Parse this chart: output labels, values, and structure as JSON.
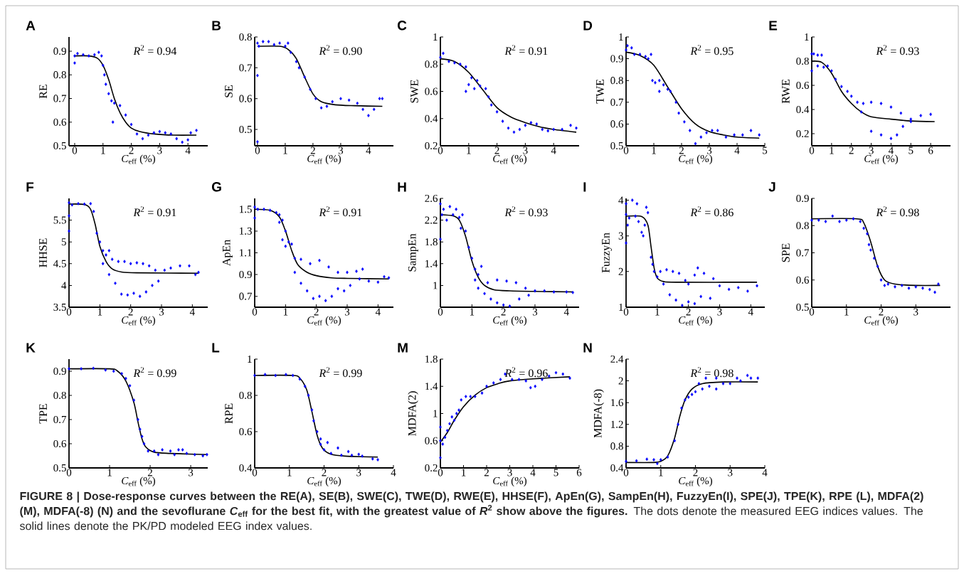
{
  "chart_data": [
    {
      "type": "line",
      "title": "A",
      "xlabel": "*C*$_{eff}$ (%)",
      "ylabel": "RE",
      "annotations": [
        "*R*$^{2}$ = 0.94",
        "FIGURE 8 | Dose-response curves between the RE(A), SE(B), SWE(C), TWE(D), RWE(E), HHSE(F), ApEn(G), SampEn(H), FuzzyEn(I), SPE(J), TPE(K), RPE (L), MDFA(2) (M), MDFA(-8) (N) and the sevoflurane *C*$_{eff}$ for the best fit, with the greatest value of *R*$^{2}$ show above the figures.",
        "The dots denote the measured EEG indices values. The solid lines denote the PK/PD modeled EEG index values."
      ],
      "xlim": [
        -0.2,
        4.7
      ],
      "ylim": [
        0.5,
        0.96
      ],
      "xticks": [
        0,
        1,
        2,
        3,
        4
      ],
      "yticks": [
        0.5,
        0.6,
        0.7,
        0.8,
        0.9
      ],
      "series": [
        {
          "type": "scatter",
          "marker": "diamond",
          "color": "#0000ff",
          "x": [
            0,
            0,
            0.1,
            0.3,
            0.5,
            0.7,
            0.85,
            0.95,
            1.0,
            1.05,
            1.1,
            1.2,
            1.3,
            1.35,
            1.4,
            1.6,
            1.8,
            2.0,
            2.2,
            2.4,
            2.6,
            2.8,
            3.0,
            3.2,
            3.4,
            3.6,
            3.8,
            4.0,
            4.1,
            4.3
          ],
          "values": [
            0.85,
            0.88,
            0.89,
            0.885,
            0.88,
            0.885,
            0.895,
            0.88,
            0.84,
            0.8,
            0.76,
            0.72,
            0.69,
            0.6,
            0.68,
            0.67,
            0.63,
            0.59,
            0.55,
            0.53,
            0.545,
            0.555,
            0.56,
            0.555,
            0.55,
            0.53,
            0.515,
            0.525,
            0.555,
            0.565
          ]
        },
        {
          "marker": "none",
          "color": "#000000",
          "x": [
            0,
            0.5,
            0.8,
            1.0,
            1.2,
            1.4,
            1.6,
            1.8,
            2.0,
            2.3,
            2.8,
            3.5,
            4.3
          ],
          "values": [
            0.88,
            0.88,
            0.87,
            0.84,
            0.78,
            0.7,
            0.64,
            0.6,
            0.575,
            0.56,
            0.55,
            0.545,
            0.545
          ]
        }
      ]
    },
    {
      "type": "line",
      "title": "B",
      "xlabel": "*C*$_{eff}$ (%)",
      "ylabel": "SE",
      "annotations": [
        "*R*$^{2}$ = 0.90"
      ],
      "xlim": [
        -0.1,
        4.9
      ],
      "ylim": [
        0.447,
        0.8
      ],
      "xticks": [
        0,
        1,
        2,
        3,
        4
      ],
      "yticks": [
        0.5,
        0.6,
        0.7,
        0.8
      ],
      "series": [
        {
          "type": "scatter",
          "marker": "diamond",
          "color": "#0000ff",
          "x": [
            0,
            0,
            0,
            0.05,
            0.2,
            0.4,
            0.6,
            0.8,
            1.0,
            1.1,
            1.2,
            1.4,
            1.5,
            1.7,
            1.9,
            2.1,
            2.3,
            2.5,
            2.7,
            3.0,
            3.3,
            3.6,
            3.8,
            4.0,
            4.2,
            4.4,
            4.5
          ],
          "values": [
            0.46,
            0.675,
            0.78,
            0.77,
            0.785,
            0.785,
            0.775,
            0.78,
            0.77,
            0.78,
            0.75,
            0.72,
            0.7,
            0.67,
            0.63,
            0.6,
            0.57,
            0.575,
            0.59,
            0.6,
            0.595,
            0.585,
            0.565,
            0.545,
            0.565,
            0.6,
            0.6
          ]
        },
        {
          "marker": "none",
          "color": "#000000",
          "x": [
            0,
            0.8,
            1.1,
            1.4,
            1.7,
            2.0,
            2.3,
            2.8,
            3.5,
            4.5
          ],
          "values": [
            0.77,
            0.77,
            0.76,
            0.73,
            0.67,
            0.615,
            0.59,
            0.58,
            0.577,
            0.575
          ]
        }
      ]
    },
    {
      "type": "line",
      "title": "C",
      "xlabel": "*C*$_{eff}$ (%)",
      "ylabel": "SWE",
      "annotations": [
        "*R*$^{2}$ = 0.91"
      ],
      "xlim": [
        0,
        4.9
      ],
      "ylim": [
        0.2,
        1
      ],
      "xticks": [
        0,
        1,
        2,
        3,
        4
      ],
      "yticks": [
        0.2,
        0.4,
        0.6,
        0.8,
        1
      ],
      "series": [
        {
          "type": "scatter",
          "marker": "diamond",
          "color": "#0000ff",
          "x": [
            0,
            0.1,
            0.3,
            0.5,
            0.7,
            0.9,
            0.9,
            1.0,
            1.1,
            1.2,
            1.3,
            1.4,
            1.6,
            1.7,
            1.8,
            2.0,
            2.2,
            2.4,
            2.6,
            2.8,
            3.0,
            3.2,
            3.4,
            3.6,
            3.8,
            4.0,
            4.3,
            4.6,
            4.8
          ],
          "values": [
            0.85,
            0.88,
            0.82,
            0.81,
            0.8,
            0.78,
            0.6,
            0.65,
            0.7,
            0.62,
            0.68,
            0.64,
            0.62,
            0.56,
            0.5,
            0.45,
            0.38,
            0.33,
            0.3,
            0.32,
            0.35,
            0.37,
            0.36,
            0.32,
            0.31,
            0.32,
            0.32,
            0.35,
            0.33
          ]
        },
        {
          "marker": "none",
          "color": "#000000",
          "x": [
            0,
            0.5,
            1.0,
            1.5,
            2.0,
            2.5,
            3.0,
            3.5,
            4.0,
            4.8
          ],
          "values": [
            0.84,
            0.82,
            0.74,
            0.61,
            0.48,
            0.41,
            0.37,
            0.34,
            0.32,
            0.3
          ]
        }
      ]
    },
    {
      "type": "line",
      "title": "D",
      "xlabel": "*C*$_{eff}$ (%)",
      "ylabel": "TWE",
      "annotations": [
        "*R*$^{2}$ = 0.95"
      ],
      "xlim": [
        0,
        5
      ],
      "ylim": [
        0.5,
        1
      ],
      "xticks": [
        0,
        1,
        2,
        3,
        4,
        5
      ],
      "yticks": [
        0.5,
        0.6,
        0.7,
        0.8,
        0.9,
        1
      ],
      "series": [
        {
          "type": "scatter",
          "marker": "diamond",
          "color": "#0000ff",
          "x": [
            0,
            0.05,
            0.2,
            0.3,
            0.5,
            0.7,
            0.8,
            0.9,
            0.95,
            1.05,
            1.2,
            1.2,
            1.35,
            1.5,
            1.6,
            1.8,
            1.9,
            2.1,
            2.3,
            2.5,
            2.7,
            2.9,
            3.1,
            3.3,
            3.6,
            3.9,
            4.2,
            4.5,
            4.8
          ],
          "values": [
            0.94,
            0.96,
            0.95,
            0.92,
            0.92,
            0.91,
            0.9,
            0.92,
            0.8,
            0.79,
            0.8,
            0.75,
            0.78,
            0.76,
            0.75,
            0.7,
            0.65,
            0.61,
            0.57,
            0.51,
            0.54,
            0.56,
            0.57,
            0.57,
            0.54,
            0.55,
            0.55,
            0.57,
            0.55
          ]
        },
        {
          "marker": "none",
          "color": "#000000",
          "x": [
            0,
            0.5,
            1.0,
            1.5,
            2.0,
            2.5,
            3.0,
            3.5,
            4.0,
            4.8
          ],
          "values": [
            0.93,
            0.915,
            0.87,
            0.77,
            0.67,
            0.6,
            0.565,
            0.55,
            0.54,
            0.535
          ]
        }
      ]
    },
    {
      "type": "line",
      "title": "E",
      "xlabel": "*C*$_{eff}$ (%)",
      "ylabel": "RWE",
      "annotations": [
        "*R*$^{2}$ = 0.93"
      ],
      "xlim": [
        0,
        7
      ],
      "ylim": [
        0.1,
        1
      ],
      "xticks": [
        0,
        1,
        2,
        3,
        4,
        5,
        6
      ],
      "yticks": [
        0.2,
        0.4,
        0.6,
        0.8,
        1
      ],
      "series": [
        {
          "type": "scatter",
          "marker": "diamond",
          "color": "#0000ff",
          "x": [
            0,
            0,
            0.1,
            0.3,
            0.5,
            0.3,
            0.6,
            0.8,
            1.0,
            1.2,
            1.5,
            1.8,
            2.0,
            2.3,
            2.6,
            3.0,
            3.5,
            4.0,
            4.5,
            5.0,
            2.5,
            3.0,
            3.5,
            4.0,
            4.3,
            4.6,
            5.0,
            5.5,
            6.0
          ],
          "values": [
            0.72,
            0.86,
            0.86,
            0.85,
            0.85,
            0.76,
            0.75,
            0.76,
            0.72,
            0.65,
            0.59,
            0.55,
            0.51,
            0.46,
            0.45,
            0.46,
            0.45,
            0.42,
            0.37,
            0.32,
            0.38,
            0.22,
            0.19,
            0.16,
            0.19,
            0.26,
            0.3,
            0.35,
            0.36
          ]
        },
        {
          "marker": "none",
          "color": "#000000",
          "x": [
            0,
            0.5,
            1.0,
            1.5,
            2.0,
            2.5,
            3.0,
            4.0,
            5.0,
            6.2
          ],
          "values": [
            0.8,
            0.79,
            0.7,
            0.55,
            0.45,
            0.38,
            0.34,
            0.32,
            0.305,
            0.3
          ]
        }
      ]
    },
    {
      "type": "line",
      "title": "F",
      "xlabel": "*C*$_{eff}$ (%)",
      "ylabel": "HHSE",
      "annotations": [
        "*R*$^{2}$ = 0.91"
      ],
      "xlim": [
        0,
        4.5
      ],
      "ylim": [
        3.5,
        6
      ],
      "xticks": [
        0,
        1,
        2,
        3,
        4
      ],
      "yticks": [
        3.5,
        4,
        4.5,
        5,
        5.5
      ],
      "series": [
        {
          "type": "scatter",
          "marker": "diamond",
          "color": "#0000ff",
          "x": [
            0,
            0,
            0,
            0.1,
            0.3,
            0.5,
            0.7,
            0.8,
            0.9,
            1.0,
            1.1,
            1.2,
            1.3,
            1.4,
            1.6,
            1.8,
            2.0,
            2.2,
            2.4,
            2.6,
            2.8,
            1.1,
            1.3,
            1.5,
            1.7,
            1.9,
            2.1,
            2.3,
            2.5,
            2.7,
            2.9,
            3.1,
            3.3,
            3.6,
            3.9,
            4.1,
            4.2
          ],
          "values": [
            5.25,
            5.6,
            5.9,
            5.85,
            5.88,
            5.87,
            5.88,
            5.7,
            5.2,
            5.0,
            4.8,
            4.7,
            4.8,
            4.6,
            4.55,
            4.55,
            4.5,
            4.52,
            4.5,
            4.45,
            4.35,
            4.5,
            4.25,
            4.05,
            3.8,
            3.78,
            3.82,
            3.75,
            3.85,
            4.0,
            4.1,
            4.35,
            4.4,
            4.45,
            4.45,
            4.25,
            4.3
          ]
        },
        {
          "marker": "none",
          "color": "#000000",
          "x": [
            0,
            0.5,
            0.7,
            0.85,
            1.0,
            1.2,
            1.4,
            1.7,
            2.2,
            4.2
          ],
          "values": [
            5.87,
            5.86,
            5.75,
            5.4,
            4.9,
            4.55,
            4.38,
            4.31,
            4.29,
            4.28
          ]
        }
      ]
    },
    {
      "type": "line",
      "title": "G",
      "xlabel": "*C*$_{eff}$ (%)",
      "ylabel": "ApEn",
      "annotations": [
        "*R*$^{2}$ = 0.91"
      ],
      "xlim": [
        0,
        4.5
      ],
      "ylim": [
        0.6,
        1.6
      ],
      "xticks": [
        0,
        1,
        2,
        3,
        4
      ],
      "yticks": [
        0.7,
        0.9,
        1.1,
        1.3,
        1.5
      ],
      "series": [
        {
          "type": "scatter",
          "marker": "diamond",
          "color": "#0000ff",
          "x": [
            0,
            0,
            0.1,
            0.3,
            0.5,
            0.7,
            0.8,
            0.9,
            1.0,
            1.1,
            1.2,
            1.3,
            1.5,
            1.8,
            2.1,
            2.4,
            2.7,
            3.0,
            3.3,
            3.5,
            0.8,
            0.9,
            1.0,
            1.3,
            1.5,
            1.7,
            1.9,
            2.1,
            2.3,
            2.5,
            2.7,
            2.9,
            3.1,
            3.4,
            3.7,
            4.0,
            4.2,
            4.35
          ],
          "values": [
            1.42,
            1.52,
            1.5,
            1.5,
            1.49,
            1.47,
            1.45,
            1.4,
            1.3,
            1.2,
            1.18,
            1.05,
            1.04,
            1.0,
            1.03,
            0.97,
            0.92,
            0.92,
            0.93,
            0.95,
            1.38,
            1.22,
            1.16,
            0.92,
            0.82,
            0.75,
            0.68,
            0.7,
            0.66,
            0.7,
            0.77,
            0.75,
            0.8,
            0.86,
            0.84,
            0.83,
            0.88,
            0.87
          ]
        },
        {
          "marker": "none",
          "color": "#000000",
          "x": [
            0,
            0.5,
            0.8,
            1.0,
            1.2,
            1.4,
            1.7,
            2.0,
            2.5,
            3.0,
            4.35
          ],
          "values": [
            1.5,
            1.49,
            1.43,
            1.3,
            1.12,
            0.99,
            0.92,
            0.89,
            0.87,
            0.865,
            0.86
          ]
        }
      ]
    },
    {
      "type": "line",
      "title": "H",
      "xlabel": "*C*$_{eff}$ (%)",
      "ylabel": "SampEn",
      "annotations": [
        "*R*$^{2}$ = 0.93"
      ],
      "xlim": [
        0,
        4.4
      ],
      "ylim": [
        0.6,
        2.6
      ],
      "xticks": [
        0,
        1,
        2,
        3,
        4
      ],
      "yticks": [
        1,
        1.4,
        1.8,
        2.2,
        2.6
      ],
      "series": [
        {
          "type": "scatter",
          "marker": "diamond",
          "color": "#0000ff",
          "x": [
            0,
            0,
            0.05,
            0.1,
            0.2,
            0.3,
            0.4,
            0.5,
            0.6,
            0.65,
            0.7,
            0.8,
            0.9,
            1.0,
            1.1,
            1.2,
            1.3,
            1.1,
            1.2,
            1.4,
            1.6,
            1.8,
            2.0,
            2.2,
            1.5,
            1.8,
            2.1,
            2.4,
            2.7,
            3.0,
            2.5,
            2.8,
            3.3,
            3.6,
            4.0,
            4.2
          ],
          "values": [
            1.85,
            2.5,
            2.3,
            2.4,
            2.2,
            2.45,
            2.3,
            2.4,
            2.25,
            2.05,
            2.3,
            2.0,
            1.7,
            1.5,
            1.3,
            1.2,
            1.35,
            1.1,
            0.95,
            0.85,
            0.75,
            0.68,
            0.64,
            0.62,
            1.05,
            1.1,
            1.08,
            1.05,
            0.95,
            0.9,
            0.75,
            0.82,
            0.9,
            0.88,
            0.88,
            0.87
          ]
        },
        {
          "marker": "none",
          "color": "#000000",
          "x": [
            0,
            0.4,
            0.6,
            0.8,
            1.0,
            1.2,
            1.4,
            1.7,
            2.2,
            3.0,
            4.2
          ],
          "values": [
            2.3,
            2.28,
            2.2,
            1.9,
            1.45,
            1.15,
            1.0,
            0.92,
            0.9,
            0.89,
            0.88
          ]
        }
      ]
    },
    {
      "type": "line",
      "title": "I",
      "xlabel": "*C*$_{eff}$ (%)",
      "ylabel": "FuzzyEn",
      "annotations": [
        "*R*$^{2}$ = 0.86"
      ],
      "xlim": [
        0,
        4.45
      ],
      "ylim": [
        1,
        4.05
      ],
      "xticks": [
        0,
        1,
        2,
        3,
        4
      ],
      "yticks": [
        1,
        2,
        3,
        4
      ],
      "series": [
        {
          "type": "scatter",
          "marker": "diamond",
          "color": "#0000ff",
          "x": [
            0,
            0,
            0,
            0.05,
            0.1,
            0.2,
            0.3,
            0.35,
            0.4,
            0.5,
            0.55,
            0.6,
            0.65,
            0.7,
            0.8,
            0.85,
            0.9,
            1.0,
            1.1,
            1.3,
            1.5,
            1.7,
            1.9,
            2.0,
            2.2,
            2.3,
            2.5,
            2.8,
            1.2,
            1.4,
            1.6,
            1.8,
            2.0,
            2.2,
            2.4,
            2.7,
            3.0,
            3.3,
            3.6,
            3.9,
            4.2
          ],
          "values": [
            2.8,
            3.6,
            3.9,
            3.3,
            3.5,
            4.0,
            3.55,
            3.9,
            3.4,
            3.1,
            3.0,
            3.3,
            3.8,
            3.65,
            2.4,
            2.2,
            2.0,
            1.85,
            2.0,
            2.05,
            2.0,
            1.95,
            1.75,
            1.65,
            1.9,
            2.1,
            1.95,
            1.8,
            1.65,
            1.35,
            1.2,
            1.05,
            1.15,
            1.1,
            1.3,
            1.25,
            1.6,
            1.5,
            1.55,
            1.45,
            1.6
          ]
        },
        {
          "marker": "none",
          "color": "#000000",
          "x": [
            0,
            0.5,
            0.7,
            0.8,
            0.9,
            1.0,
            1.2,
            1.6,
            4.2
          ],
          "values": [
            3.55,
            3.54,
            3.3,
            2.7,
            2.1,
            1.82,
            1.72,
            1.7,
            1.7
          ]
        }
      ]
    },
    {
      "type": "line",
      "title": "J",
      "xlabel": "*C*$_{eff}$ (%)",
      "ylabel": "SPE",
      "annotations": [
        "*R*$^{2}$ = 0.98"
      ],
      "xlim": [
        0,
        4
      ],
      "ylim": [
        0.5,
        0.9
      ],
      "xticks": [
        0,
        1,
        2,
        3
      ],
      "yticks": [
        0.5,
        0.6,
        0.7,
        0.8,
        0.9
      ],
      "series": [
        {
          "type": "scatter",
          "marker": "diamond",
          "color": "#0000ff",
          "x": [
            0,
            0.2,
            0.4,
            0.6,
            0.8,
            1.0,
            1.2,
            1.4,
            1.5,
            1.6,
            1.65,
            1.7,
            1.8,
            1.9,
            2.0,
            2.1,
            2.2,
            2.4,
            2.6,
            2.8,
            3.0,
            3.2,
            3.4,
            3.55,
            3.65
          ],
          "values": [
            0.82,
            0.82,
            0.815,
            0.835,
            0.815,
            0.82,
            0.825,
            0.815,
            0.79,
            0.77,
            0.73,
            0.71,
            0.68,
            0.65,
            0.6,
            0.58,
            0.585,
            0.575,
            0.58,
            0.57,
            0.575,
            0.57,
            0.565,
            0.555,
            0.585
          ]
        },
        {
          "marker": "none",
          "color": "#000000",
          "x": [
            0,
            1.3,
            1.5,
            1.7,
            1.9,
            2.1,
            2.4,
            3.0,
            3.7
          ],
          "values": [
            0.825,
            0.825,
            0.81,
            0.74,
            0.65,
            0.6,
            0.585,
            0.58,
            0.58
          ]
        }
      ]
    },
    {
      "type": "line",
      "title": "K",
      "xlabel": "*C*$_{eff}$ (%)",
      "ylabel": "TPE",
      "annotations": [
        "*R*$^{2}$ = 0.99"
      ],
      "xlim": [
        0,
        3.42
      ],
      "ylim": [
        0.5,
        0.95
      ],
      "xticks": [
        0,
        1,
        2,
        3
      ],
      "yticks": [
        0.5,
        0.6,
        0.7,
        0.8,
        0.9
      ],
      "series": [
        {
          "type": "scatter",
          "marker": "diamond",
          "color": "#0000ff",
          "x": [
            0,
            0.3,
            0.6,
            0.9,
            1.1,
            1.3,
            1.4,
            1.5,
            1.6,
            1.7,
            1.75,
            1.8,
            1.85,
            1.95,
            2.1,
            2.3,
            2.5,
            2.7,
            2.8,
            2.9,
            3.1,
            3.3,
            3.4,
            2.2,
            2.6
          ],
          "values": [
            0.91,
            0.91,
            0.912,
            0.905,
            0.9,
            0.89,
            0.87,
            0.84,
            0.78,
            0.7,
            0.66,
            0.63,
            0.6,
            0.57,
            0.57,
            0.575,
            0.57,
            0.575,
            0.575,
            0.56,
            0.555,
            0.55,
            0.555,
            0.555,
            0.555
          ]
        },
        {
          "marker": "none",
          "color": "#000000",
          "x": [
            0,
            1.0,
            1.2,
            1.4,
            1.6,
            1.7,
            1.8,
            1.9,
            2.1,
            2.5,
            3.4
          ],
          "values": [
            0.91,
            0.91,
            0.9,
            0.86,
            0.77,
            0.69,
            0.62,
            0.585,
            0.565,
            0.56,
            0.555
          ]
        }
      ]
    },
    {
      "type": "line",
      "title": "L",
      "xlabel": "*C*$_{eff}$ (%)",
      "ylabel": "RPE",
      "annotations": [
        "*R*$^{2}$ = 0.99"
      ],
      "xlim": [
        0,
        4
      ],
      "ylim": [
        0.4,
        1
      ],
      "xticks": [
        0,
        1,
        2,
        3,
        4
      ],
      "yticks": [
        0.4,
        0.6,
        0.8,
        1
      ],
      "series": [
        {
          "type": "scatter",
          "marker": "diamond",
          "color": "#0000ff",
          "x": [
            0,
            0.3,
            0.6,
            0.9,
            1.1,
            1.3,
            1.45,
            1.55,
            1.65,
            1.7,
            1.8,
            1.9,
            2.0,
            2.2,
            2.5,
            2.8,
            3.1,
            3.4,
            3.55,
            1.9,
            2.1,
            2.4,
            2.7,
            3.0
          ],
          "values": [
            0.91,
            0.915,
            0.91,
            0.915,
            0.91,
            0.89,
            0.85,
            0.8,
            0.72,
            0.66,
            0.6,
            0.53,
            0.5,
            0.48,
            0.47,
            0.47,
            0.465,
            0.45,
            0.445,
            0.56,
            0.54,
            0.51,
            0.49,
            0.475
          ]
        },
        {
          "marker": "none",
          "color": "#000000",
          "x": [
            0,
            1.1,
            1.3,
            1.5,
            1.65,
            1.8,
            1.95,
            2.2,
            2.6,
            3.55
          ],
          "values": [
            0.91,
            0.91,
            0.895,
            0.83,
            0.71,
            0.58,
            0.51,
            0.475,
            0.465,
            0.46
          ]
        }
      ]
    },
    {
      "type": "line",
      "title": "M",
      "xlabel": "*C*$_{eff}$ (%)",
      "ylabel": "MDFA(2)",
      "annotations": [
        "*R*$^{2}$ = 0.96"
      ],
      "xlim": [
        0,
        6
      ],
      "ylim": [
        0.2,
        1.8
      ],
      "xticks": [
        0,
        1,
        2,
        3,
        4,
        5,
        6
      ],
      "yticks": [
        0.2,
        0.6,
        1,
        1.4,
        1.8
      ],
      "series": [
        {
          "type": "scatter",
          "marker": "diamond",
          "color": "#0000ff",
          "x": [
            0,
            0,
            0,
            0.1,
            0.2,
            0.3,
            0.4,
            0.5,
            0.6,
            0.7,
            0.8,
            0.9,
            1.1,
            1.3,
            1.5,
            1.8,
            2.0,
            2.3,
            2.6,
            2.8,
            3.1,
            3.4,
            3.7,
            3.9,
            4.1,
            4.4,
            4.7,
            5.0,
            5.3,
            5.6
          ],
          "values": [
            0.35,
            0.6,
            0.8,
            0.55,
            0.65,
            0.75,
            0.85,
            0.95,
            0.9,
            1.0,
            1.05,
            1.2,
            1.25,
            1.25,
            1.25,
            1.3,
            1.4,
            1.45,
            1.5,
            1.58,
            1.5,
            1.5,
            1.48,
            1.38,
            1.4,
            1.5,
            1.55,
            1.6,
            1.58,
            1.52
          ]
        },
        {
          "marker": "none",
          "color": "#000000",
          "x": [
            0,
            0.3,
            0.6,
            1.0,
            1.5,
            2.0,
            2.5,
            3.0,
            4.0,
            5.6
          ],
          "values": [
            0.58,
            0.72,
            0.9,
            1.1,
            1.27,
            1.38,
            1.44,
            1.48,
            1.51,
            1.54
          ]
        }
      ]
    },
    {
      "type": "line",
      "title": "N",
      "xlabel": "*C*$_{eff}$ (%)",
      "ylabel": "MDFA(-8)",
      "annotations": [
        "*R*$^{2}$ = 0.98"
      ],
      "xlim": [
        0,
        4
      ],
      "ylim": [
        0.4,
        2.4
      ],
      "xticks": [
        0,
        1,
        2,
        3,
        4
      ],
      "yticks": [
        0.4,
        0.8,
        1.2,
        1.6,
        2,
        2.4
      ],
      "series": [
        {
          "type": "scatter",
          "marker": "diamond",
          "color": "#0000ff",
          "x": [
            0,
            0.3,
            0.6,
            0.8,
            0.9,
            1.0,
            1.2,
            1.4,
            1.5,
            1.6,
            1.7,
            1.8,
            1.9,
            2.0,
            2.2,
            2.4,
            2.6,
            2.8,
            3.0,
            3.3,
            3.6,
            3.8,
            2.1,
            2.3,
            2.6,
            3.2,
            3.5
          ],
          "values": [
            0.52,
            0.53,
            0.56,
            0.55,
            0.48,
            0.55,
            0.6,
            0.9,
            1.2,
            1.5,
            1.65,
            1.7,
            1.75,
            1.8,
            1.85,
            1.9,
            1.85,
            1.95,
            1.95,
            2.0,
            2.05,
            2.05,
            1.95,
            2.05,
            2.05,
            2.05,
            2.1
          ]
        },
        {
          "marker": "none",
          "color": "#000000",
          "x": [
            0,
            0.8,
            1.0,
            1.2,
            1.4,
            1.55,
            1.7,
            1.9,
            2.2,
            2.8,
            3.8
          ],
          "values": [
            0.5,
            0.5,
            0.52,
            0.62,
            0.95,
            1.35,
            1.65,
            1.85,
            1.95,
            1.98,
            1.98
          ]
        }
      ]
    }
  ]
}
